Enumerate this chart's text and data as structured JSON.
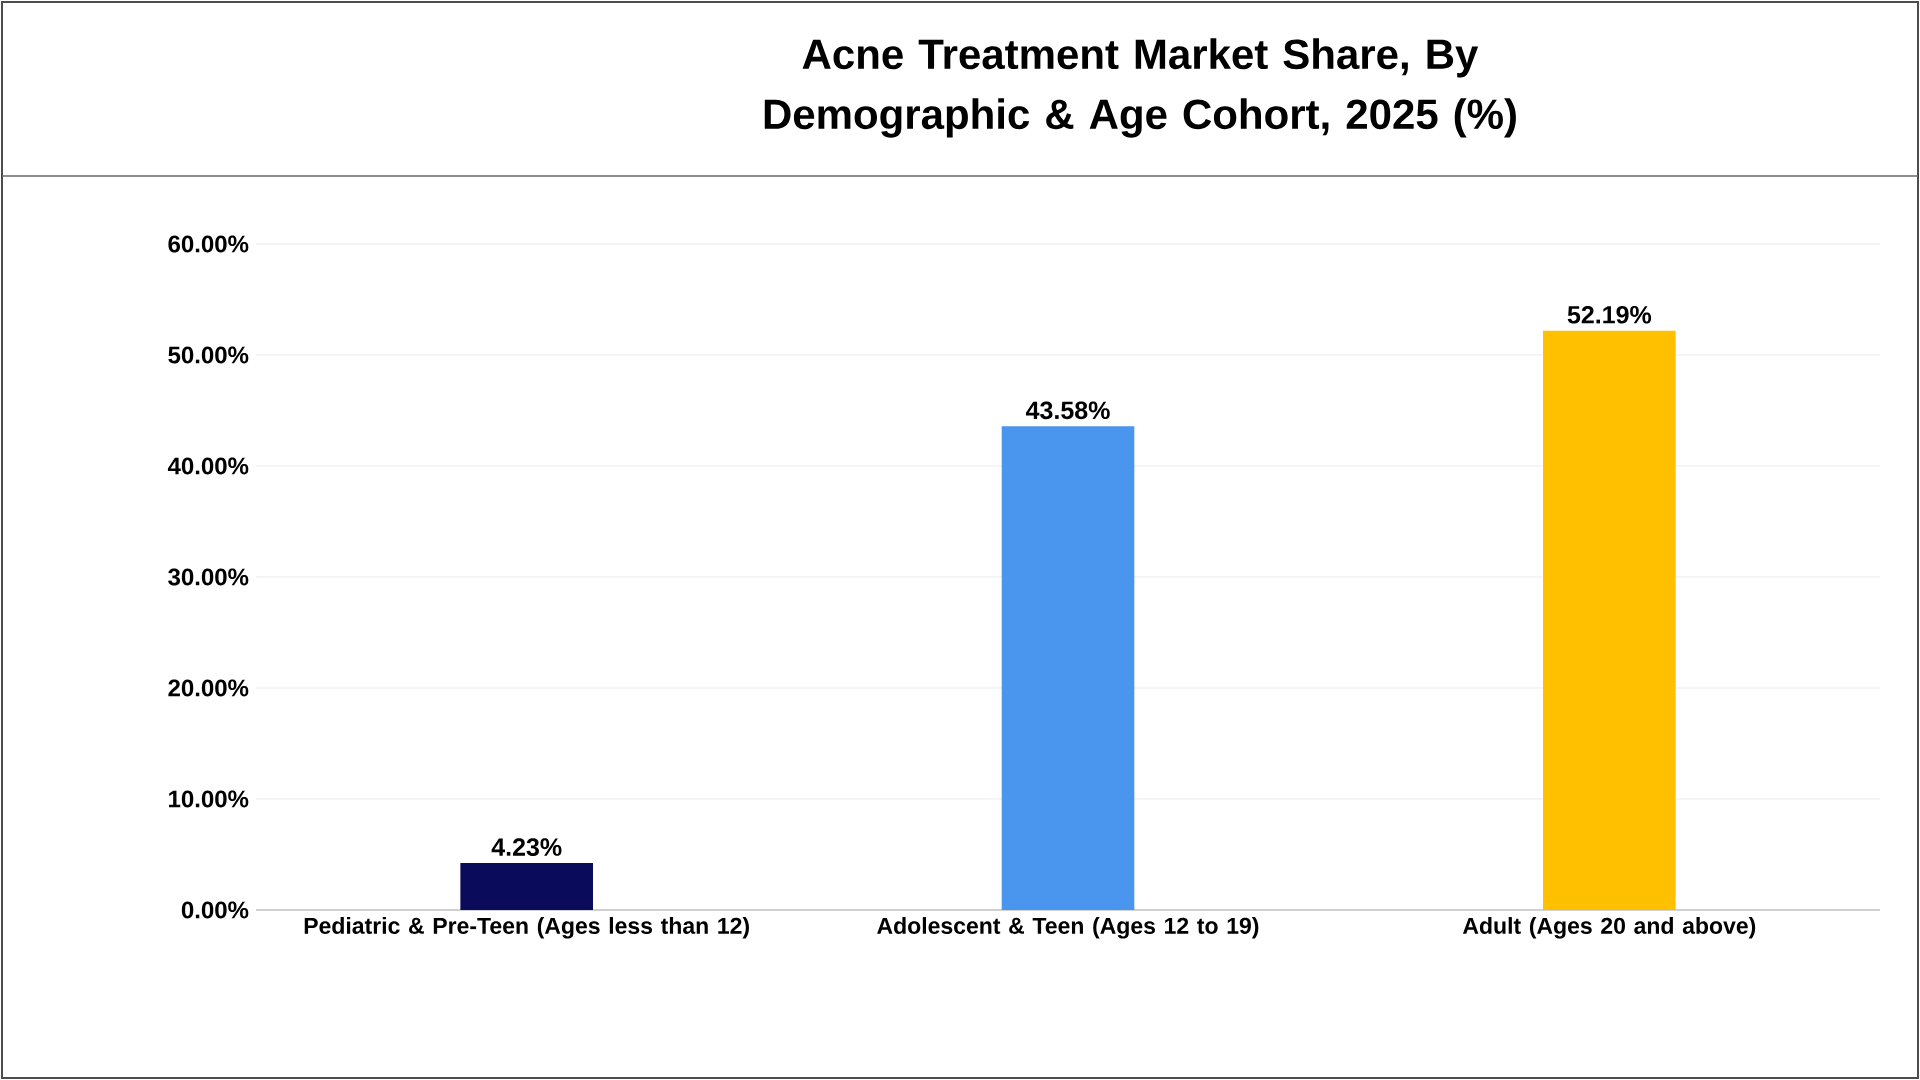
{
  "chart_data": {
    "type": "bar",
    "title": "Acne Treatment Market Share, By Demographic & Age Cohort, 2025 (%)",
    "categories": [
      "Pediatric & Pre-Teen (Ages less than 12)",
      "Adolescent & Teen (Ages 12 to 19)",
      "Adult (Ages 20 and above)"
    ],
    "values": [
      4.23,
      43.58,
      52.19
    ],
    "colors": [
      "#0b0b5c",
      "#4a96ee",
      "#ffc000"
    ],
    "value_labels": [
      "4.23%",
      "43.58%",
      "52.19%"
    ],
    "ylim": [
      0,
      60
    ],
    "yticks": [
      {
        "value": 0,
        "label": "0.00%"
      },
      {
        "value": 10,
        "label": "10.00%"
      },
      {
        "value": 20,
        "label": "20.00%"
      },
      {
        "value": 30,
        "label": "30.00%"
      },
      {
        "value": 40,
        "label": "40.00%"
      },
      {
        "value": 50,
        "label": "50.00%"
      },
      {
        "value": 60,
        "label": "60.00%"
      }
    ],
    "grid": "y"
  }
}
